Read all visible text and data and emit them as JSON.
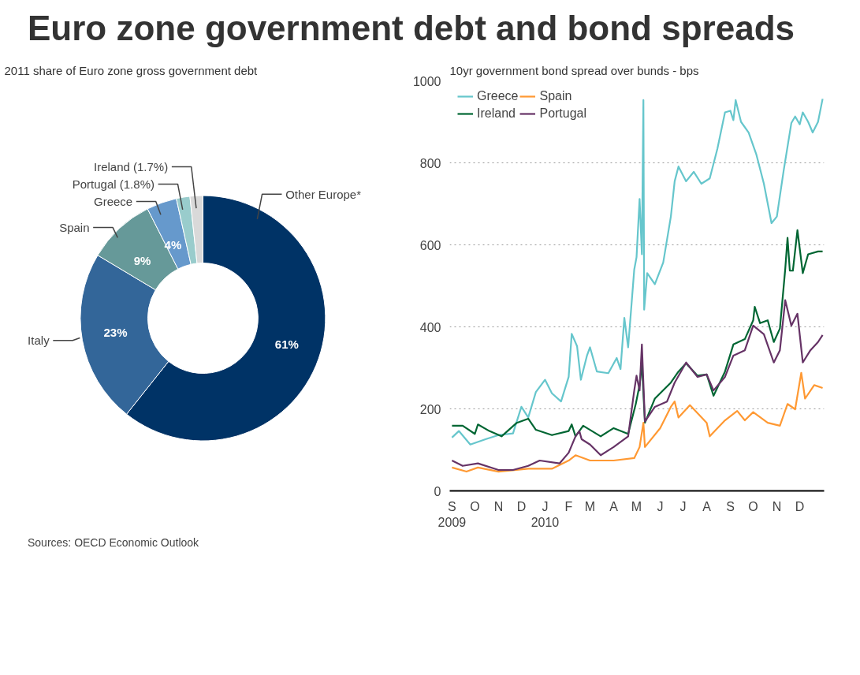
{
  "chart_data": [
    {
      "type": "donut",
      "title": "Euro zone government debt and bond spreads",
      "subtitle": "2011 share of Euro zone gross government debt",
      "categories": [
        "Other Europe*",
        "Italy",
        "Spain",
        "Greece",
        "Portugal (1.8%)",
        "Ireland (1.7%)"
      ],
      "values": [
        61,
        23,
        9,
        4,
        1.8,
        1.7
      ],
      "colors": [
        "#003366",
        "#336699",
        "#669999",
        "#6699cc",
        "#99cccc",
        "#d9d9d9"
      ],
      "value_labels": [
        "61%",
        "23%",
        "9%",
        "4%",
        null,
        null
      ],
      "annotations": [
        "Sources: OECD Economic Outlook"
      ]
    },
    {
      "type": "line",
      "title": "10yr government bond spread over bunds - bps",
      "xlim": [
        "2009-08-29",
        "2011-01-02"
      ],
      "ylim": [
        0,
        1000
      ],
      "xticks": [
        {
          "value": "2009-09-01",
          "label": "S\n2009"
        },
        {
          "value": "2009-10-01",
          "label": "O"
        },
        {
          "value": "2009-11-01",
          "label": "N"
        },
        {
          "value": "2009-12-01",
          "label": "D"
        },
        {
          "value": "2010-01-01",
          "label": "J\n2010"
        },
        {
          "value": "2010-02-01",
          "label": "F"
        },
        {
          "value": "2010-03-01",
          "label": "M"
        },
        {
          "value": "2010-04-01",
          "label": "A"
        },
        {
          "value": "2010-05-01",
          "label": "M"
        },
        {
          "value": "2010-06-01",
          "label": "J"
        },
        {
          "value": "2010-07-01",
          "label": "J"
        },
        {
          "value": "2010-08-01",
          "label": "A"
        },
        {
          "value": "2010-09-01",
          "label": "S"
        },
        {
          "value": "2010-10-01",
          "label": "O"
        },
        {
          "value": "2010-11-01",
          "label": "N"
        },
        {
          "value": "2010-12-01",
          "label": "D"
        }
      ],
      "yticks": [
        0,
        200,
        400,
        600,
        800,
        1000
      ],
      "grid": "y",
      "legend": "top left",
      "series": [
        {
          "name": "Greece",
          "color": "#66c6cc",
          "x": [
            "2009-09-01",
            "2009-09-10",
            "2009-09-25",
            "2009-10-15",
            "2009-11-01",
            "2009-11-20",
            "2009-12-01",
            "2009-12-10",
            "2009-12-20",
            "2010-01-01",
            "2010-01-10",
            "2010-01-22",
            "2010-02-01",
            "2010-02-05",
            "2010-02-12",
            "2010-02-17",
            "2010-02-25",
            "2010-03-01",
            "2010-03-10",
            "2010-03-25",
            "2010-04-05",
            "2010-04-10",
            "2010-04-15",
            "2010-04-20",
            "2010-04-28",
            "2010-05-01",
            "2010-05-05",
            "2010-05-08",
            "2010-05-10",
            "2010-05-11",
            "2010-05-15",
            "2010-05-25",
            "2010-06-05",
            "2010-06-15",
            "2010-06-20",
            "2010-06-25",
            "2010-07-05",
            "2010-07-15",
            "2010-07-25",
            "2010-08-05",
            "2010-08-15",
            "2010-08-25",
            "2010-09-01",
            "2010-09-05",
            "2010-09-08",
            "2010-09-15",
            "2010-09-25",
            "2010-10-05",
            "2010-10-15",
            "2010-10-25",
            "2010-11-01",
            "2010-11-10",
            "2010-11-20",
            "2010-11-25",
            "2010-12-01",
            "2010-12-05",
            "2010-12-12",
            "2010-12-18",
            "2010-12-25",
            "2010-12-31"
          ],
          "values": [
            130,
            146,
            113,
            126,
            136,
            140,
            205,
            179,
            241,
            271,
            238,
            218,
            278,
            383,
            353,
            271,
            330,
            350,
            291,
            287,
            324,
            297,
            422,
            350,
            540,
            570,
            712,
            577,
            953,
            442,
            531,
            504,
            557,
            669,
            755,
            791,
            755,
            778,
            749,
            762,
            834,
            923,
            927,
            904,
            953,
            900,
            874,
            821,
            749,
            653,
            669,
            782,
            897,
            913,
            894,
            923,
            900,
            874,
            900,
            956
          ]
        },
        {
          "name": "Ireland",
          "color": "#006633",
          "x": [
            "2009-09-01",
            "2009-09-15",
            "2009-10-01",
            "2009-10-05",
            "2009-10-20",
            "2009-11-05",
            "2009-11-25",
            "2009-12-10",
            "2009-12-20",
            "2010-01-10",
            "2010-02-01",
            "2010-02-05",
            "2010-02-10",
            "2010-02-20",
            "2010-03-15",
            "2010-04-01",
            "2010-04-20",
            "2010-04-30",
            "2010-05-05",
            "2010-05-08",
            "2010-05-12",
            "2010-05-25",
            "2010-06-15",
            "2010-06-25",
            "2010-07-05",
            "2010-07-20",
            "2010-08-01",
            "2010-08-10",
            "2010-08-25",
            "2010-09-05",
            "2010-09-20",
            "2010-10-01",
            "2010-10-03",
            "2010-10-10",
            "2010-10-20",
            "2010-10-28",
            "2010-11-05",
            "2010-11-12",
            "2010-11-15",
            "2010-11-18",
            "2010-11-22",
            "2010-11-28",
            "2010-12-05",
            "2010-12-12",
            "2010-12-25",
            "2010-12-31"
          ],
          "values": [
            159,
            159,
            139,
            162,
            146,
            133,
            166,
            176,
            149,
            136,
            146,
            162,
            133,
            159,
            133,
            153,
            139,
            212,
            258,
            311,
            166,
            225,
            264,
            291,
            311,
            281,
            284,
            232,
            291,
            357,
            370,
            416,
            449,
            409,
            416,
            363,
            396,
            541,
            617,
            537,
            537,
            636,
            531,
            577,
            584,
            584
          ]
        },
        {
          "name": "Spain",
          "color": "#ff9933",
          "x": [
            "2009-09-01",
            "2009-09-20",
            "2009-10-05",
            "2009-11-01",
            "2009-12-10",
            "2010-01-10",
            "2010-02-01",
            "2010-02-10",
            "2010-03-01",
            "2010-04-01",
            "2010-04-28",
            "2010-05-05",
            "2010-05-10",
            "2010-05-12",
            "2010-06-01",
            "2010-06-15",
            "2010-06-20",
            "2010-06-25",
            "2010-07-10",
            "2010-08-01",
            "2010-08-05",
            "2010-08-25",
            "2010-09-10",
            "2010-09-20",
            "2010-10-01",
            "2010-10-20",
            "2010-11-05",
            "2010-11-15",
            "2010-11-25",
            "2010-12-03",
            "2010-12-08",
            "2010-12-20",
            "2010-12-31"
          ],
          "values": [
            57,
            47,
            57,
            47,
            54,
            54,
            74,
            87,
            74,
            74,
            80,
            107,
            166,
            107,
            153,
            205,
            218,
            179,
            209,
            166,
            133,
            172,
            195,
            172,
            192,
            166,
            159,
            212,
            199,
            288,
            225,
            258,
            251
          ]
        },
        {
          "name": "Portugal",
          "color": "#663366",
          "x": [
            "2009-09-01",
            "2009-09-15",
            "2009-10-05",
            "2009-11-01",
            "2009-11-20",
            "2009-12-10",
            "2009-12-25",
            "2010-01-20",
            "2010-02-01",
            "2010-02-10",
            "2010-02-15",
            "2010-02-18",
            "2010-03-01",
            "2010-03-15",
            "2010-04-01",
            "2010-04-20",
            "2010-04-28",
            "2010-05-01",
            "2010-05-05",
            "2010-05-08",
            "2010-05-12",
            "2010-05-25",
            "2010-06-10",
            "2010-06-20",
            "2010-07-05",
            "2010-07-20",
            "2010-08-01",
            "2010-08-10",
            "2010-08-25",
            "2010-09-05",
            "2010-09-20",
            "2010-10-01",
            "2010-10-15",
            "2010-10-28",
            "2010-11-05",
            "2010-11-12",
            "2010-11-20",
            "2010-11-28",
            "2010-12-05",
            "2010-12-15",
            "2010-12-25",
            "2010-12-31"
          ],
          "values": [
            74,
            61,
            67,
            51,
            51,
            61,
            74,
            67,
            93,
            133,
            146,
            126,
            113,
            87,
            107,
            133,
            245,
            281,
            245,
            357,
            169,
            205,
            218,
            264,
            313,
            278,
            284,
            245,
            278,
            330,
            343,
            403,
            382,
            313,
            343,
            465,
            403,
            432,
            313,
            343,
            363,
            380
          ]
        }
      ]
    }
  ]
}
